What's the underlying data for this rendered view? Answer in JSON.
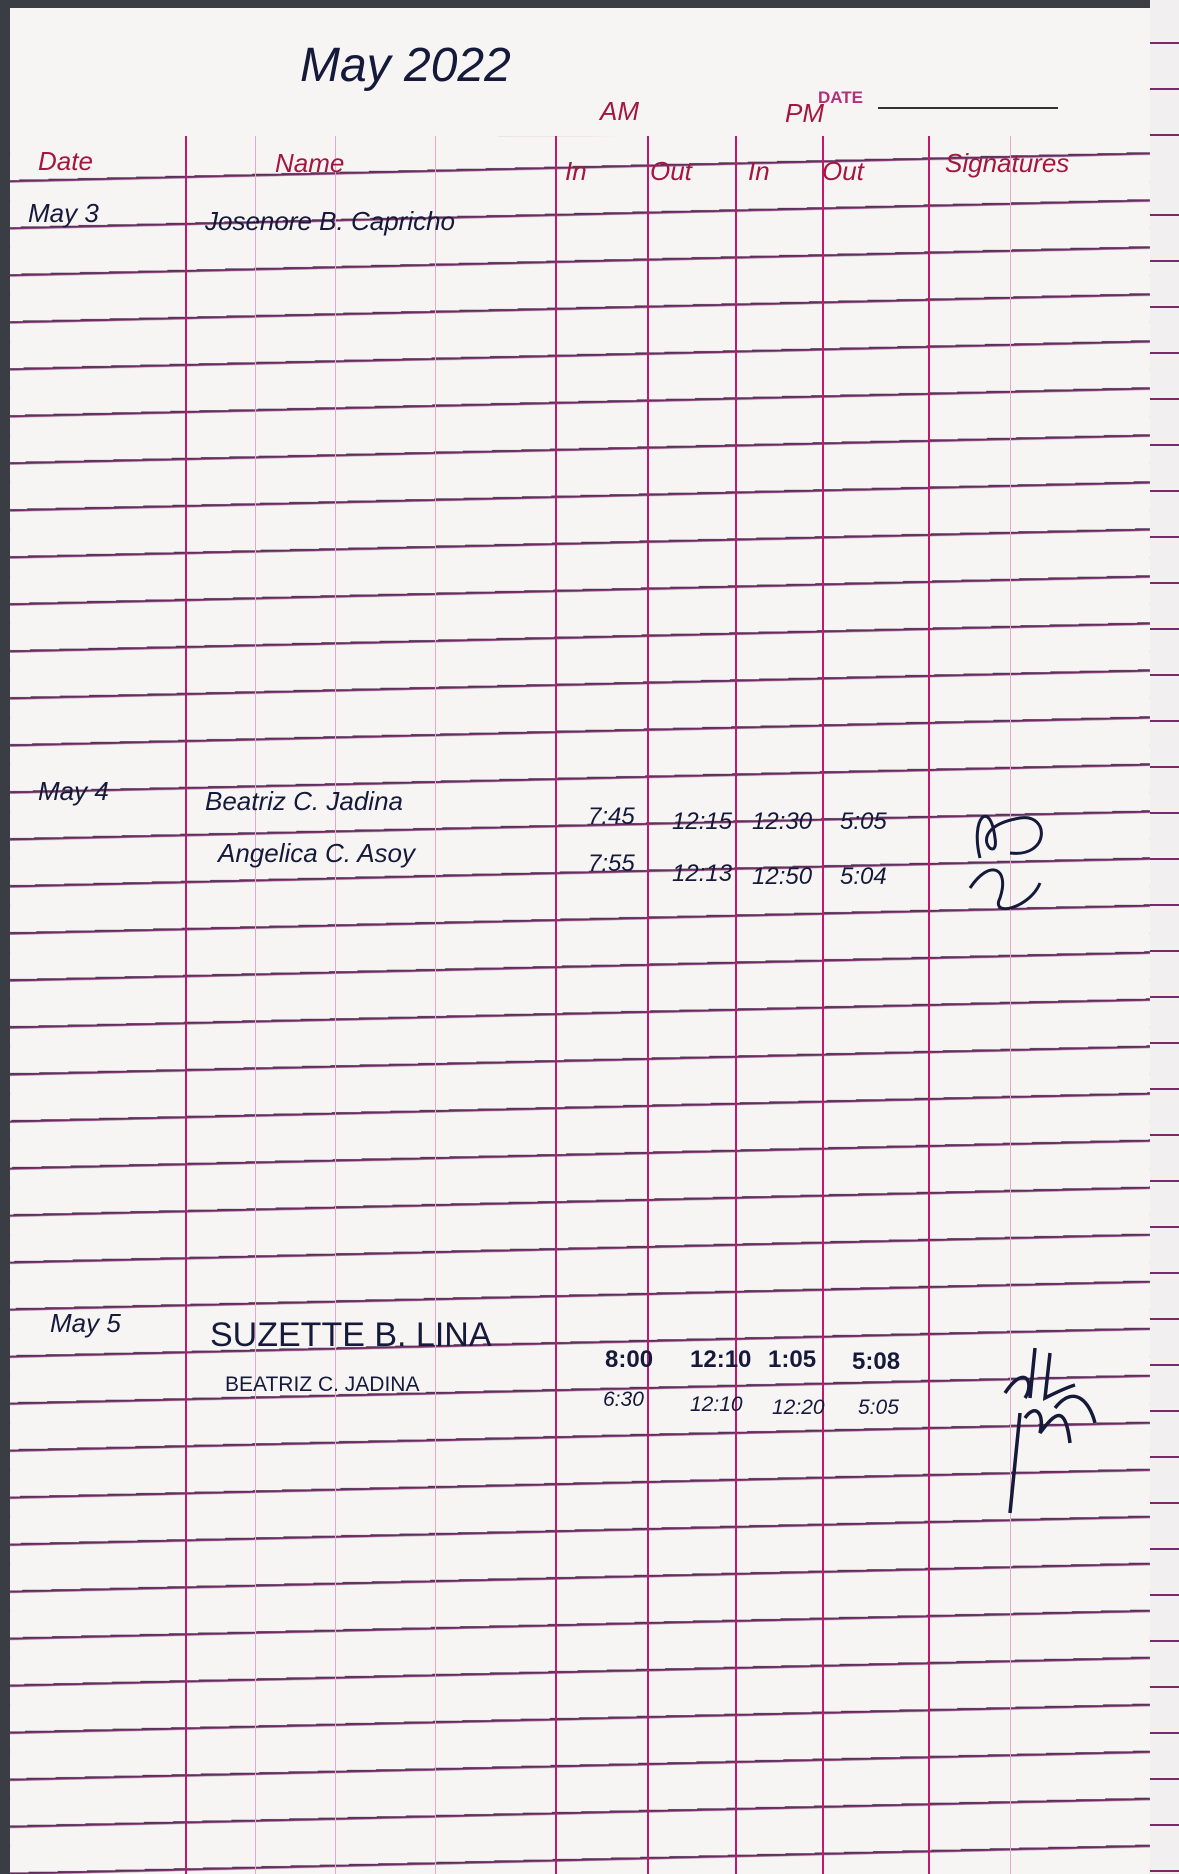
{
  "title": "May 2022",
  "date_label": "DATE",
  "period_labels": {
    "am": "AM",
    "pm": "PM"
  },
  "columns": {
    "date": "Date",
    "name": "Name",
    "am_in": "In",
    "am_out": "Out",
    "pm_in": "In",
    "pm_out": "Out",
    "signatures": "Signatures"
  },
  "entries": [
    {
      "date": "May 3",
      "name": "Josenore B. Capricho",
      "am_in": "",
      "am_out": "",
      "pm_in": "",
      "pm_out": ""
    },
    {
      "date": "May 4",
      "name": "Beatriz C. Jadina",
      "am_in": "7:45",
      "am_out": "12:15",
      "pm_in": "12:30",
      "pm_out": "5:05"
    },
    {
      "date": "",
      "name": "Angelica C. Asoy",
      "am_in": "7:55",
      "am_out": "12:13",
      "pm_in": "12:50",
      "pm_out": "5:04"
    },
    {
      "date": "May 5",
      "name": "SUZETTE B. LINA",
      "am_in": "8:00",
      "am_out": "12:10",
      "pm_in": "1:05",
      "pm_out": "5:08"
    },
    {
      "date": "",
      "name": "BEATRIZ C. JADINA",
      "am_in": "6:30",
      "am_out": "12:10",
      "pm_in": "12:20",
      "pm_out": "5:05"
    }
  ],
  "colors": {
    "ruling": "#c0186a",
    "ink": "#15193a",
    "header_ink": "#a5163f"
  }
}
